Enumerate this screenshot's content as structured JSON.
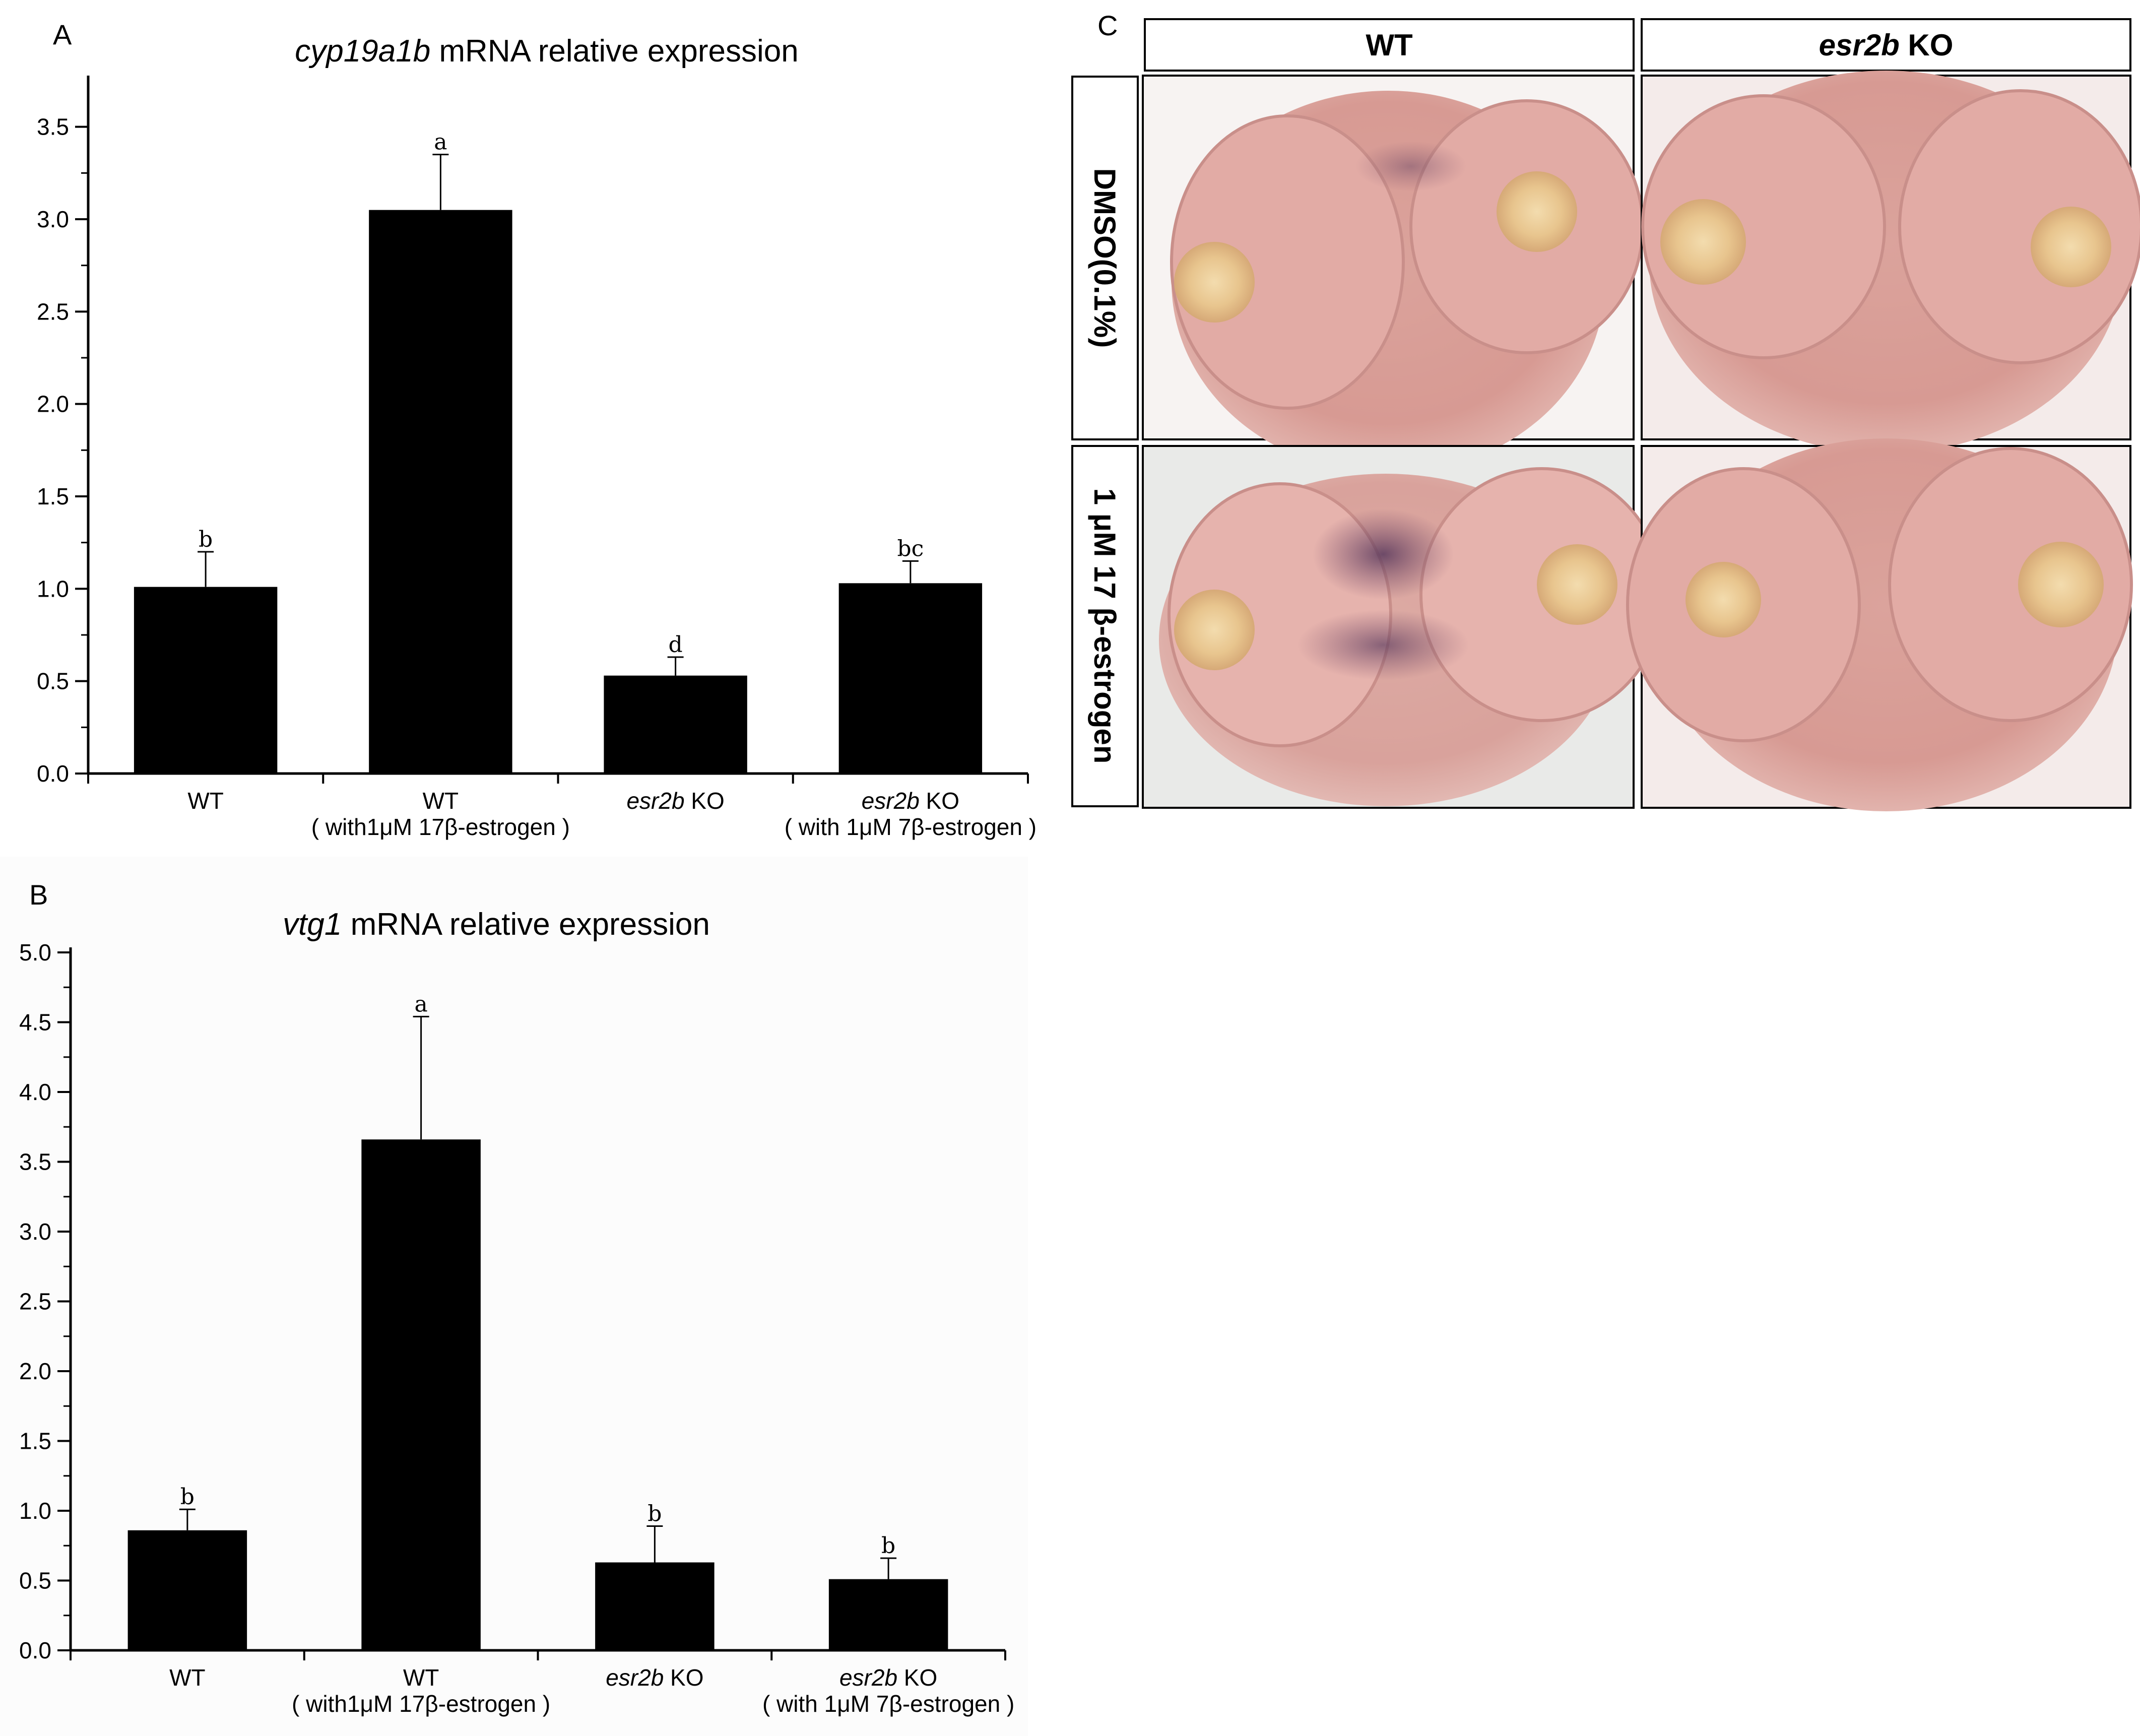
{
  "panels": {
    "a": {
      "letter": "A"
    },
    "b": {
      "letter": "B"
    },
    "c": {
      "letter": "C",
      "col_headers": [
        {
          "italic": "",
          "text": "WT"
        },
        {
          "italic": "esr2b",
          "text": " KO"
        }
      ],
      "row_headers": [
        "DMSO(0.1%)",
        "1 μM 17 β-estrogen"
      ],
      "image_descriptions": []
    }
  },
  "chart_data": [
    {
      "type": "bar",
      "title_italic": "cyp19a1b",
      "title_rest": " mRNA relative expression",
      "ylim": [
        0,
        3.75
      ],
      "yticks": [
        0.0,
        0.5,
        1.0,
        1.5,
        2.0,
        2.5,
        3.0,
        3.5
      ],
      "ytick_labels": [
        "0.0",
        "0.5",
        "1.0",
        "1.5",
        "2.0",
        "2.5",
        "3.0",
        "3.5"
      ],
      "categories": [
        {
          "italic": "",
          "line1": "WT",
          "line2": ""
        },
        {
          "italic": "",
          "line1": "WT",
          "line2": "( with1μM 17β-estrogen )"
        },
        {
          "italic": "esr2b",
          "line1": " KO",
          "line2": ""
        },
        {
          "italic": "esr2b",
          "line1": " KO",
          "line2": "( with 1μM 7β-estrogen )"
        }
      ],
      "values": [
        1.01,
        3.05,
        0.53,
        1.03
      ],
      "errors": [
        0.19,
        0.3,
        0.1,
        0.12
      ],
      "sig_labels": [
        "b",
        "a",
        "d",
        "bc"
      ],
      "bar_color": "#000000"
    },
    {
      "type": "bar",
      "title_italic": "vtg1",
      "title_rest": " mRNA relative expression",
      "ylim": [
        0,
        5.0
      ],
      "yticks": [
        0.0,
        0.5,
        1.0,
        1.5,
        2.0,
        2.5,
        3.0,
        3.5,
        4.0,
        4.5,
        5.0
      ],
      "ytick_labels": [
        "0.0",
        "0.5",
        "1.0",
        "1.5",
        "2.0",
        "2.5",
        "3.0",
        "3.5",
        "4.0",
        "4.5",
        "5.0"
      ],
      "categories": [
        {
          "italic": "",
          "line1": "WT",
          "line2": ""
        },
        {
          "italic": "",
          "line1": "WT",
          "line2": "( with1μM 17β-estrogen )"
        },
        {
          "italic": "esr2b",
          "line1": " KO",
          "line2": ""
        },
        {
          "italic": "esr2b",
          "line1": " KO",
          "line2": "( with 1μM 7β-estrogen )"
        }
      ],
      "values": [
        0.86,
        3.66,
        0.63,
        0.51
      ],
      "errors": [
        0.15,
        0.88,
        0.26,
        0.15
      ],
      "sig_labels": [
        "b",
        "a",
        "b",
        "b"
      ],
      "bar_color": "#000000"
    }
  ]
}
